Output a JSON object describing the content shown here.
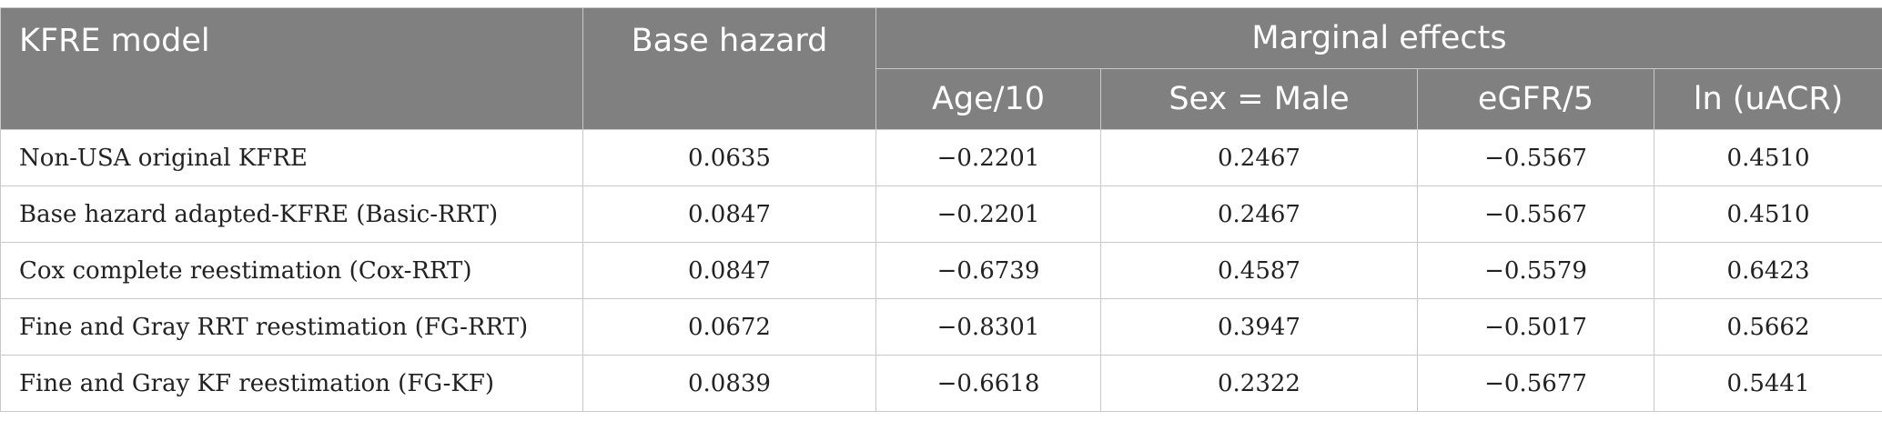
{
  "header": {
    "model": "KFRE model",
    "base_hazard": "Base hazard",
    "marginal_effects": "Marginal effects",
    "age": "Age/10",
    "sex": "Sex = Male",
    "egfr": "eGFR/5",
    "uacr": "ln (uACR)"
  },
  "rows": [
    {
      "model": "Non-USA original KFRE",
      "base": "0.0635",
      "age": "−0.2201",
      "sex": "0.2467",
      "egfr": "−0.5567",
      "uacr": "0.4510"
    },
    {
      "model": "Base hazard adapted-KFRE (Basic-RRT)",
      "base": "0.0847",
      "age": "−0.2201",
      "sex": "0.2467",
      "egfr": "−0.5567",
      "uacr": "0.4510"
    },
    {
      "model": "Cox complete reestimation (Cox-RRT)",
      "base": "0.0847",
      "age": "−0.6739",
      "sex": "0.4587",
      "egfr": "−0.5579",
      "uacr": "0.6423"
    },
    {
      "model": "Fine and Gray RRT reestimation (FG-RRT)",
      "base": "0.0672",
      "age": "−0.8301",
      "sex": "0.3947",
      "egfr": "−0.5017",
      "uacr": "0.5662"
    },
    {
      "model": "Fine and Gray KF reestimation (FG-KF)",
      "base": "0.0839",
      "age": "−0.6618",
      "sex": "0.2322",
      "egfr": "−0.5677",
      "uacr": "0.5441"
    }
  ]
}
